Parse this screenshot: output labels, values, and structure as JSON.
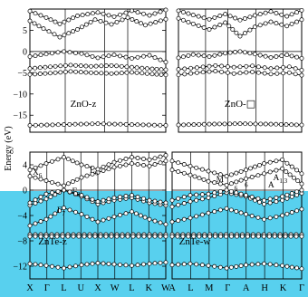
{
  "colors": {
    "highlight": "#58d0ee",
    "line": "#000000",
    "marker_fill": "#ffffff",
    "background": "#ffffff"
  },
  "ylabel": "Energy (eV)",
  "chart_data": [
    {
      "type": "line",
      "label": "ZnO-z",
      "x_ticks": [],
      "y_ticks": [
        -15,
        -10,
        -5,
        0,
        5
      ],
      "ylim": [
        -19,
        10
      ],
      "fermi_level": 0,
      "series": [
        {
          "x": [
            0,
            0.25,
            0.5,
            0.75,
            1
          ],
          "y": [
            -17.4,
            -17.2,
            -17.0,
            -17.2,
            -17.4
          ]
        },
        {
          "x": [
            0,
            0.15,
            0.3,
            0.45,
            0.6,
            0.75,
            0.9,
            1
          ],
          "y": [
            -5.4,
            -5.1,
            -4.7,
            -5.0,
            -5.2,
            -4.9,
            -5.3,
            -5.5
          ]
        },
        {
          "x": [
            0,
            0.15,
            0.3,
            0.45,
            0.6,
            0.75,
            0.9,
            1
          ],
          "y": [
            -4.0,
            -3.6,
            -3.2,
            -3.5,
            -3.3,
            -3.7,
            -4.1,
            -4.3
          ]
        },
        {
          "x": [
            0,
            0.12,
            0.25,
            0.38,
            0.5,
            0.62,
            0.75,
            0.88,
            1
          ],
          "y": [
            -1.2,
            -0.6,
            0.0,
            -0.5,
            -1.5,
            -0.8,
            -1.6,
            -0.9,
            -2.5
          ]
        },
        {
          "x": [
            0,
            0.1,
            0.22,
            0.35,
            0.48,
            0.6,
            0.72,
            0.85,
            1
          ],
          "y": [
            7.2,
            5.4,
            3.4,
            5.2,
            7.5,
            6.4,
            8.0,
            6.2,
            7.6
          ]
        },
        {
          "x": [
            0,
            0.12,
            0.22,
            0.35,
            0.5,
            0.62,
            0.75,
            0.88,
            1
          ],
          "y": [
            9.5,
            8.0,
            6.5,
            8.4,
            9.2,
            8.2,
            9.6,
            8.5,
            9.8
          ]
        }
      ]
    },
    {
      "type": "line",
      "label": "ZnO-",
      "x_ticks": [],
      "y_ticks": [],
      "ylim": [
        -19,
        10
      ],
      "fermi_level": 0,
      "series": [
        {
          "x": [
            0,
            0.25,
            0.5,
            0.75,
            1
          ],
          "y": [
            -17.3,
            -17.1,
            -17.0,
            -17.1,
            -17.3
          ]
        },
        {
          "x": [
            0,
            0.15,
            0.3,
            0.45,
            0.6,
            0.75,
            0.9,
            1
          ],
          "y": [
            -5.5,
            -5.0,
            -4.6,
            -5.2,
            -4.8,
            -5.3,
            -5.0,
            -5.6
          ]
        },
        {
          "x": [
            0,
            0.15,
            0.3,
            0.45,
            0.6,
            0.75,
            0.9,
            1
          ],
          "y": [
            -4.2,
            -3.8,
            -3.3,
            -3.7,
            -3.4,
            -4.0,
            -3.6,
            -4.4
          ]
        },
        {
          "x": [
            0,
            0.12,
            0.25,
            0.38,
            0.5,
            0.62,
            0.75,
            0.88,
            1
          ],
          "y": [
            -1.5,
            -0.7,
            -1.2,
            -0.4,
            0.0,
            -0.6,
            -1.4,
            -0.8,
            -1.6
          ]
        },
        {
          "x": [
            0,
            0.12,
            0.25,
            0.38,
            0.5,
            0.62,
            0.75,
            0.88,
            1
          ],
          "y": [
            7.8,
            6.5,
            5.2,
            6.8,
            3.6,
            5.8,
            7.0,
            6.0,
            7.5
          ]
        },
        {
          "x": [
            0,
            0.12,
            0.25,
            0.38,
            0.5,
            0.62,
            0.75,
            0.88,
            1
          ],
          "y": [
            9.6,
            8.6,
            7.6,
            8.8,
            7.4,
            8.5,
            9.4,
            8.3,
            9.7
          ]
        }
      ]
    },
    {
      "type": "line",
      "label": "ZnTe-z",
      "x_ticks": [
        "X",
        "Γ",
        "L",
        "U",
        "X",
        "W",
        "L",
        "K",
        "W"
      ],
      "y_ticks": [
        -12,
        -8,
        -4,
        0,
        4
      ],
      "ylim": [
        -14,
        6
      ],
      "fermi_level": 0,
      "annotations": [
        {
          "text": "X",
          "sub": "6",
          "x": 0.02,
          "y": 2.4
        },
        {
          "text": "Γ",
          "sub": "8",
          "x": 0.31,
          "y": -0.6
        },
        {
          "text": "Γ",
          "sub": "7",
          "x": 0.2,
          "y": -3.6
        },
        {
          "text": "L",
          "sub": "6",
          "x": 0.44,
          "y": 2.8
        }
      ],
      "series": [
        {
          "x": [
            0,
            0.12,
            0.25,
            0.38,
            0.5,
            0.62,
            0.75,
            0.88,
            1
          ],
          "y": [
            -11.6,
            -11.9,
            -12.3,
            -11.8,
            -11.5,
            -11.7,
            -11.9,
            -11.6,
            -11.4
          ]
        },
        {
          "x": [
            0,
            1
          ],
          "y": [
            -7.0,
            -7.0
          ]
        },
        {
          "x": [
            0,
            1
          ],
          "y": [
            -7.3,
            -7.3
          ]
        },
        {
          "x": [
            0,
            0.12,
            0.25,
            0.38,
            0.5,
            0.62,
            0.75,
            0.88,
            1
          ],
          "y": [
            -5.6,
            -4.6,
            -2.8,
            -3.8,
            -5.0,
            -4.2,
            -3.4,
            -4.6,
            -5.4
          ]
        },
        {
          "x": [
            0,
            0.12,
            0.25,
            0.38,
            0.5,
            0.62,
            0.75,
            0.88,
            1
          ],
          "y": [
            -2.4,
            -1.4,
            0.0,
            -1.0,
            -2.2,
            -1.6,
            -1.2,
            -2.0,
            -2.4
          ]
        },
        {
          "x": [
            0,
            0.12,
            0.25,
            0.38,
            0.5,
            0.62,
            0.75,
            0.88,
            1
          ],
          "y": [
            -2.0,
            -0.6,
            0.0,
            -0.8,
            -1.8,
            -1.2,
            -0.8,
            -1.6,
            -2.0
          ]
        },
        {
          "x": [
            0,
            0.12,
            0.25,
            0.38,
            0.5,
            0.62,
            0.75,
            0.88,
            1
          ],
          "y": [
            2.2,
            1.5,
            0.7,
            2.0,
            2.8,
            3.6,
            4.2,
            3.8,
            4.6
          ]
        },
        {
          "x": [
            0,
            0.12,
            0.25,
            0.38,
            0.5,
            0.62,
            0.75,
            0.88,
            1
          ],
          "y": [
            3.2,
            4.2,
            5.2,
            4.0,
            3.3,
            4.4,
            5.2,
            4.8,
            5.5
          ]
        }
      ]
    },
    {
      "type": "line",
      "label": "ZnTe-w",
      "x_ticks": [
        "A",
        "L",
        "M",
        "Γ",
        "A",
        "H",
        "K",
        "Γ"
      ],
      "y_ticks": [],
      "ylim": [
        -14,
        6
      ],
      "fermi_level": 0,
      "annotations": [
        {
          "text": "M",
          "sub": "",
          "x": 0.34,
          "y": 1.3
        },
        {
          "text": "A",
          "sub": "1,3",
          "x": 0.78,
          "y": 1.6
        },
        {
          "text": "A",
          "sub": "",
          "x": 0.74,
          "y": 0.4
        },
        {
          "text": "",
          "sub": "6",
          "x": 0.56,
          "y": 0.9
        },
        {
          "text": "",
          "sub": "6",
          "x": 0.48,
          "y": 0.4
        }
      ],
      "series": [
        {
          "x": [
            0,
            0.14,
            0.28,
            0.42,
            0.57,
            0.71,
            0.85,
            1
          ],
          "y": [
            -11.8,
            -11.6,
            -11.9,
            -12.3,
            -11.8,
            -11.6,
            -11.9,
            -12.4
          ]
        },
        {
          "x": [
            0,
            1
          ],
          "y": [
            -7.0,
            -7.0
          ]
        },
        {
          "x": [
            0,
            1
          ],
          "y": [
            -7.3,
            -7.3
          ]
        },
        {
          "x": [
            0,
            0.14,
            0.28,
            0.42,
            0.57,
            0.71,
            0.85,
            1
          ],
          "y": [
            -5.0,
            -4.4,
            -3.6,
            -2.9,
            -3.8,
            -4.6,
            -4.0,
            -3.0
          ]
        },
        {
          "x": [
            0,
            0.14,
            0.28,
            0.42,
            0.57,
            0.71,
            0.85,
            1
          ],
          "y": [
            -2.6,
            -1.8,
            -1.2,
            -0.4,
            -1.0,
            -2.2,
            -1.6,
            -0.5
          ]
        },
        {
          "x": [
            0,
            0.14,
            0.28,
            0.42,
            0.57,
            0.71,
            0.85,
            1
          ],
          "y": [
            -1.6,
            -0.8,
            -0.6,
            0.0,
            -0.8,
            -1.6,
            -1.0,
            0.0
          ]
        },
        {
          "x": [
            0,
            0.14,
            0.28,
            0.42,
            0.57,
            0.71,
            0.85,
            1
          ],
          "y": [
            3.2,
            2.4,
            1.4,
            0.8,
            1.8,
            2.6,
            3.4,
            1.0
          ]
        },
        {
          "x": [
            0,
            0.14,
            0.28,
            0.42,
            0.57,
            0.71,
            0.85,
            1
          ],
          "y": [
            4.6,
            3.8,
            3.0,
            2.2,
            3.2,
            4.2,
            4.8,
            2.6
          ]
        }
      ]
    }
  ]
}
